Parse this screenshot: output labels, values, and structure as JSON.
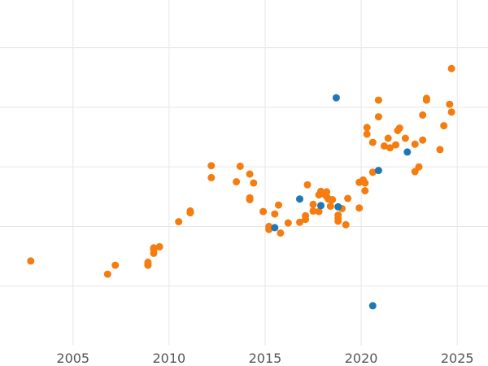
{
  "chart_data": {
    "type": "scatter",
    "title": "",
    "xlabel": "",
    "ylabel": "",
    "xlim": [
      2001.2,
      2026.6
    ],
    "ylim": [
      -1.0,
      4.8
    ],
    "x_ticks": [
      2005,
      2010,
      2015,
      2020,
      2025
    ],
    "y_gridlines": [
      0,
      1,
      2,
      3,
      4
    ],
    "grid": true,
    "legend": "none",
    "series": [
      {
        "color": "#f57c0e",
        "points": [
          [
            2002.8,
            0.42
          ],
          [
            2006.8,
            0.2
          ],
          [
            2007.2,
            0.35
          ],
          [
            2008.9,
            0.35
          ],
          [
            2008.9,
            0.38
          ],
          [
            2008.9,
            0.4
          ],
          [
            2009.2,
            0.55
          ],
          [
            2009.2,
            0.61
          ],
          [
            2009.2,
            0.64
          ],
          [
            2009.5,
            0.66
          ],
          [
            2010.5,
            1.08
          ],
          [
            2011.1,
            1.23
          ],
          [
            2011.1,
            1.26
          ],
          [
            2012.2,
            1.82
          ],
          [
            2012.2,
            2.02
          ],
          [
            2013.5,
            1.75
          ],
          [
            2013.7,
            2.01
          ],
          [
            2014.2,
            1.45
          ],
          [
            2014.2,
            1.48
          ],
          [
            2014.2,
            1.88
          ],
          [
            2014.4,
            1.73
          ],
          [
            2014.9,
            1.25
          ],
          [
            2015.2,
            0.95
          ],
          [
            2015.2,
            1.0
          ],
          [
            2015.5,
            1.21
          ],
          [
            2015.7,
            1.36
          ],
          [
            2015.8,
            0.89
          ],
          [
            2016.2,
            1.06
          ],
          [
            2016.8,
            1.07
          ],
          [
            2017.1,
            1.12
          ],
          [
            2017.1,
            1.18
          ],
          [
            2017.2,
            1.7
          ],
          [
            2017.5,
            1.26
          ],
          [
            2017.5,
            1.37
          ],
          [
            2017.8,
            1.25
          ],
          [
            2017.8,
            1.53
          ],
          [
            2017.9,
            1.59
          ],
          [
            2018.0,
            1.55
          ],
          [
            2018.2,
            1.5
          ],
          [
            2018.2,
            1.58
          ],
          [
            2018.3,
            1.46
          ],
          [
            2018.4,
            1.34
          ],
          [
            2018.5,
            1.45
          ],
          [
            2018.8,
            1.09
          ],
          [
            2018.8,
            1.14
          ],
          [
            2018.8,
            1.19
          ],
          [
            2019.0,
            1.3
          ],
          [
            2019.2,
            1.03
          ],
          [
            2019.3,
            1.47
          ],
          [
            2019.9,
            1.31
          ],
          [
            2019.9,
            1.74
          ],
          [
            2020.1,
            1.78
          ],
          [
            2020.2,
            1.6
          ],
          [
            2020.2,
            1.73
          ],
          [
            2020.3,
            2.55
          ],
          [
            2020.3,
            2.66
          ],
          [
            2020.6,
            1.91
          ],
          [
            2020.6,
            2.41
          ],
          [
            2020.9,
            2.84
          ],
          [
            2020.9,
            3.12
          ],
          [
            2021.2,
            2.35
          ],
          [
            2021.4,
            2.48
          ],
          [
            2021.5,
            2.32
          ],
          [
            2021.8,
            2.37
          ],
          [
            2021.9,
            2.61
          ],
          [
            2022.0,
            2.65
          ],
          [
            2022.3,
            2.48
          ],
          [
            2022.8,
            1.92
          ],
          [
            2022.8,
            2.38
          ],
          [
            2023.0,
            2.0
          ],
          [
            2023.2,
            2.45
          ],
          [
            2023.2,
            2.87
          ],
          [
            2023.4,
            3.12
          ],
          [
            2023.4,
            3.15
          ],
          [
            2024.1,
            2.29
          ],
          [
            2024.3,
            2.69
          ],
          [
            2024.6,
            3.05
          ],
          [
            2024.7,
            2.92
          ],
          [
            2024.7,
            3.65
          ]
        ]
      },
      {
        "color": "#1f77b4",
        "points": [
          [
            2015.5,
            0.98
          ],
          [
            2016.8,
            1.46
          ],
          [
            2017.9,
            1.35
          ],
          [
            2018.7,
            3.16
          ],
          [
            2018.8,
            1.33
          ],
          [
            2020.6,
            -0.33
          ],
          [
            2020.9,
            1.94
          ],
          [
            2022.4,
            2.25
          ]
        ]
      }
    ]
  }
}
